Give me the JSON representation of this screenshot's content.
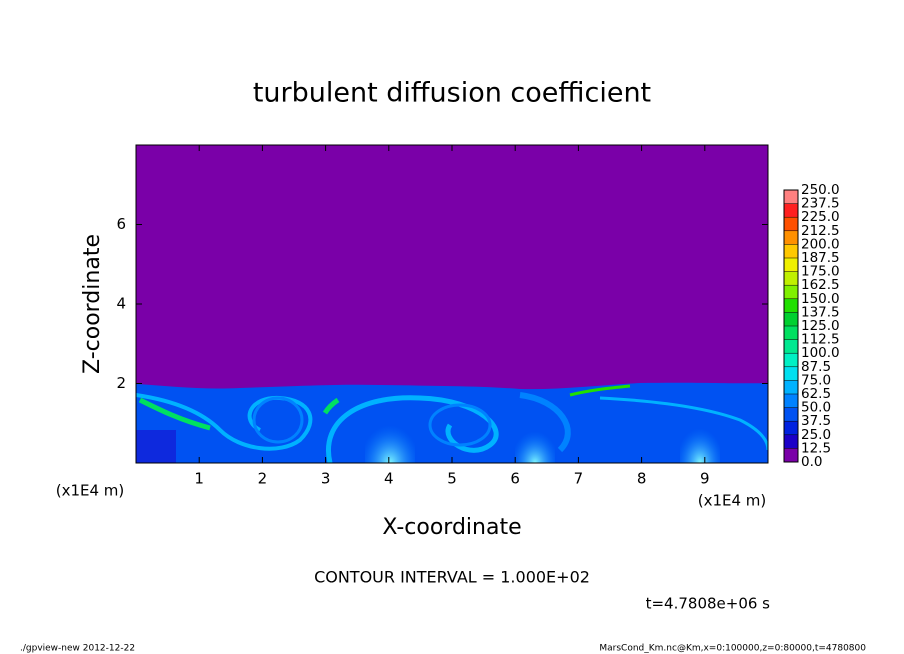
{
  "chart_data": {
    "type": "contour",
    "title": "turbulent diffusion coefficient",
    "x_label": "X-coordinate",
    "y_label": "Z-coordinate",
    "x_unit": "(x1E4 m)",
    "y_unit": "(x1E4 m)",
    "xlim": [
      0,
      10
    ],
    "ylim": [
      0,
      8
    ],
    "xticks": [
      1,
      2,
      3,
      4,
      5,
      6,
      7,
      8,
      9
    ],
    "yticks": [
      2,
      4,
      6
    ],
    "colorbar": {
      "levels": [
        {
          "value": 0,
          "label": "0.0"
        },
        {
          "value": 12.5,
          "label": "12.5"
        },
        {
          "value": 25,
          "label": "25.0"
        },
        {
          "value": 37.5,
          "label": "37.5"
        },
        {
          "value": 50,
          "label": "50.0"
        },
        {
          "value": 62.5,
          "label": "62.5"
        },
        {
          "value": 75,
          "label": "75.0"
        },
        {
          "value": 87.5,
          "label": "87.5"
        },
        {
          "value": 100,
          "label": "100.0"
        },
        {
          "value": 112.5,
          "label": "112.5"
        },
        {
          "value": 125,
          "label": "125.0"
        },
        {
          "value": 137.5,
          "label": "137.5"
        },
        {
          "value": 150,
          "label": "150.0"
        },
        {
          "value": 162.5,
          "label": "162.5"
        },
        {
          "value": 175,
          "label": "175.0"
        },
        {
          "value": 187.5,
          "label": "187.5"
        },
        {
          "value": 200,
          "label": "200.0"
        },
        {
          "value": 212.5,
          "label": "212.5"
        },
        {
          "value": 225,
          "label": "225.0"
        },
        {
          "value": 237.5,
          "label": "237.5"
        },
        {
          "value": 250,
          "label": "250.0"
        }
      ],
      "colors": [
        "#7a00a8",
        "#1c00c8",
        "#0022e0",
        "#0052f2",
        "#0082ff",
        "#00b2ff",
        "#00e0f0",
        "#00f0c4",
        "#00e890",
        "#00e060",
        "#00d030",
        "#20e000",
        "#80f000",
        "#c0f000",
        "#f0f000",
        "#ffc800",
        "#ff9000",
        "#ff5000",
        "#ff2020",
        "#ff8080"
      ]
    },
    "contour_interval": "CONTOUR INTERVAL = 1.000E+02",
    "time_label": "t=4.7808e+06 s",
    "footer_left": "./gpview-new  2012-12-22",
    "footer_right": "MarsCond_Km.nc@Km,x=0:100000,z=0:80000,t=4780800"
  }
}
